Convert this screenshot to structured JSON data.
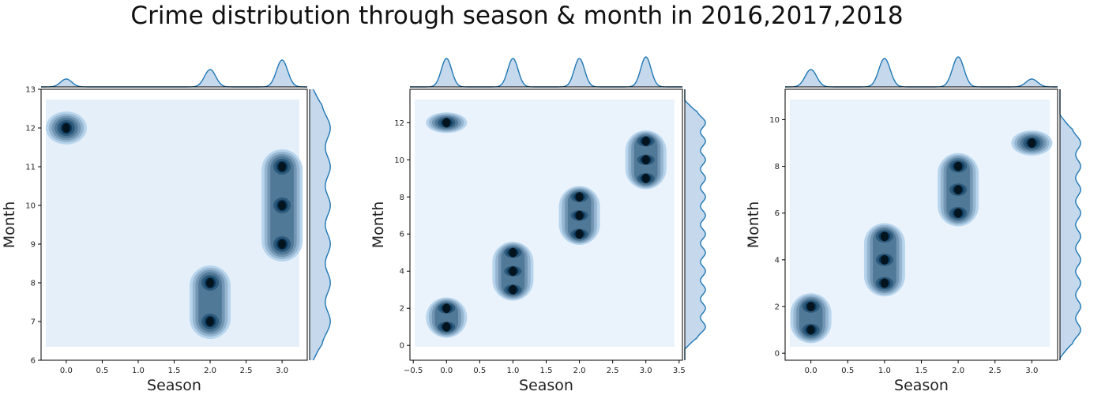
{
  "suptitle": "Crime distribution through season & month in 2016,2017,2018",
  "colors": {
    "accent": "#1f77b4",
    "fill": "#c6d9ec",
    "bgLight": "#e4eff9",
    "bgLighter": "#eaf3fb"
  },
  "chart_data": [
    {
      "type": "scatter",
      "subtype": "kde-jointplot",
      "xlabel": "Season",
      "ylabel": "Month",
      "xlim": [
        -0.35,
        3.35
      ],
      "ylim": [
        6,
        13
      ],
      "xticks": [
        0.0,
        0.5,
        1.0,
        1.5,
        2.0,
        2.5,
        3.0
      ],
      "xtick_labels": [
        "0.0",
        "0.5",
        "1.0",
        "1.5",
        "2.0",
        "2.5",
        "3.0"
      ],
      "yticks": [
        6,
        7,
        8,
        9,
        10,
        11,
        12,
        13
      ],
      "ytick_labels": [
        "6",
        "7",
        "8",
        "9",
        "10",
        "11",
        "12",
        "13"
      ],
      "points": [
        {
          "x": 0,
          "y": 12
        },
        {
          "x": 2,
          "y": 7
        },
        {
          "x": 2,
          "y": 8
        },
        {
          "x": 3,
          "y": 9
        },
        {
          "x": 3,
          "y": 10
        },
        {
          "x": 3,
          "y": 11
        }
      ],
      "x_marginal_peaks": [
        {
          "x": 0,
          "h": 0.25
        },
        {
          "x": 2,
          "h": 0.55
        },
        {
          "x": 3,
          "h": 0.85
        }
      ],
      "grid": false
    },
    {
      "type": "scatter",
      "subtype": "kde-jointplot",
      "xlabel": "Season",
      "ylabel": "Month",
      "xlim": [
        -0.55,
        3.55
      ],
      "ylim": [
        -0.8,
        13.8
      ],
      "xticks": [
        -0.5,
        0.0,
        0.5,
        1.0,
        1.5,
        2.0,
        2.5,
        3.0,
        3.5
      ],
      "xtick_labels": [
        "−0.5",
        "0.0",
        "0.5",
        "1.0",
        "1.5",
        "2.0",
        "2.5",
        "3.0",
        "3.5"
      ],
      "yticks": [
        0,
        2,
        4,
        6,
        8,
        10,
        12
      ],
      "ytick_labels": [
        "0",
        "2",
        "4",
        "6",
        "8",
        "10",
        "12"
      ],
      "points": [
        {
          "x": 0,
          "y": 1
        },
        {
          "x": 0,
          "y": 2
        },
        {
          "x": 0,
          "y": 12
        },
        {
          "x": 1,
          "y": 3
        },
        {
          "x": 1,
          "y": 4
        },
        {
          "x": 1,
          "y": 5
        },
        {
          "x": 2,
          "y": 6
        },
        {
          "x": 2,
          "y": 7
        },
        {
          "x": 2,
          "y": 8
        },
        {
          "x": 3,
          "y": 9
        },
        {
          "x": 3,
          "y": 10
        },
        {
          "x": 3,
          "y": 11
        }
      ],
      "x_marginal_peaks": [
        {
          "x": 0,
          "h": 0.9
        },
        {
          "x": 1,
          "h": 0.9
        },
        {
          "x": 2,
          "h": 0.9
        },
        {
          "x": 3,
          "h": 0.95
        }
      ],
      "grid": false
    },
    {
      "type": "scatter",
      "subtype": "kde-jointplot",
      "xlabel": "Season",
      "ylabel": "Month",
      "xlim": [
        -0.35,
        3.35
      ],
      "ylim": [
        -0.3,
        11.3
      ],
      "xticks": [
        0.0,
        0.5,
        1.0,
        1.5,
        2.0,
        2.5,
        3.0
      ],
      "xtick_labels": [
        "0.0",
        "0.5",
        "1.0",
        "1.5",
        "2.0",
        "2.5",
        "3.0"
      ],
      "yticks": [
        0,
        2,
        4,
        6,
        8,
        10
      ],
      "ytick_labels": [
        "0",
        "2",
        "4",
        "6",
        "8",
        "10"
      ],
      "points": [
        {
          "x": 0,
          "y": 1
        },
        {
          "x": 0,
          "y": 2
        },
        {
          "x": 1,
          "y": 3
        },
        {
          "x": 1,
          "y": 4
        },
        {
          "x": 1,
          "y": 5
        },
        {
          "x": 2,
          "y": 6
        },
        {
          "x": 2,
          "y": 7
        },
        {
          "x": 2,
          "y": 8
        },
        {
          "x": 3,
          "y": 9
        }
      ],
      "x_marginal_peaks": [
        {
          "x": 0,
          "h": 0.55
        },
        {
          "x": 1,
          "h": 0.9
        },
        {
          "x": 2,
          "h": 0.95
        },
        {
          "x": 3,
          "h": 0.25
        }
      ],
      "grid": false
    }
  ]
}
